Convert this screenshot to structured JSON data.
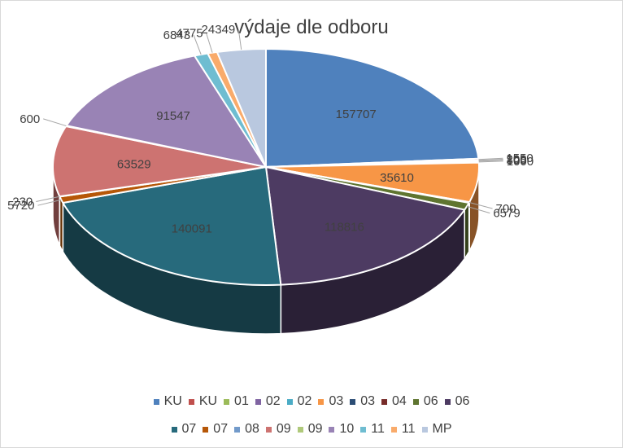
{
  "chart_data": {
    "type": "pie",
    "title": "výdaje dle odboru",
    "three_d": true,
    "legend_position": "bottom",
    "slices": [
      {
        "label": "KU",
        "value": 157707,
        "color": "#4f81bd",
        "data_label": "157707"
      },
      {
        "label": "KU",
        "value": 1550,
        "color": "#c0504d",
        "data_label": "1550"
      },
      {
        "label": "01",
        "value": 200,
        "color": "#9bbb59",
        "data_label": "200"
      },
      {
        "label": "02",
        "value": 805,
        "color": "#8064a2",
        "data_label": "805"
      },
      {
        "label": "02",
        "value": 1000,
        "color": "#4bacc6",
        "data_label": "1000"
      },
      {
        "label": "03",
        "value": 35610,
        "color": "#f79646",
        "data_label": "35610"
      },
      {
        "label": "03",
        "value": 0,
        "color": "#2c4d75",
        "data_label": ""
      },
      {
        "label": "04",
        "value": 700,
        "color": "#772c2a",
        "data_label": "700"
      },
      {
        "label": "06",
        "value": 6579,
        "color": "#5f7530",
        "data_label": "6579"
      },
      {
        "label": "06",
        "value": 118816,
        "color": "#4d3b62",
        "data_label": "118816"
      },
      {
        "label": "07",
        "value": 140091,
        "color": "#276a7c",
        "data_label": "140091"
      },
      {
        "label": "07",
        "value": 5720,
        "color": "#b65708",
        "data_label": "5720"
      },
      {
        "label": "08",
        "value": 230,
        "color": "#729aca",
        "data_label": "230"
      },
      {
        "label": "09",
        "value": 63529,
        "color": "#cd7371",
        "data_label": "63529"
      },
      {
        "label": "09",
        "value": 600,
        "color": "#afc97a",
        "data_label": "600"
      },
      {
        "label": "10",
        "value": 91547,
        "color": "#9983b5",
        "data_label": "91547"
      },
      {
        "label": "11",
        "value": 6843,
        "color": "#6fbdd1",
        "data_label": "6843"
      },
      {
        "label": "11",
        "value": 4775,
        "color": "#f9ab6b",
        "data_label": "4775"
      },
      {
        "label": "MP",
        "value": 24349,
        "color": "#b9c8df",
        "data_label": "24349"
      }
    ]
  }
}
